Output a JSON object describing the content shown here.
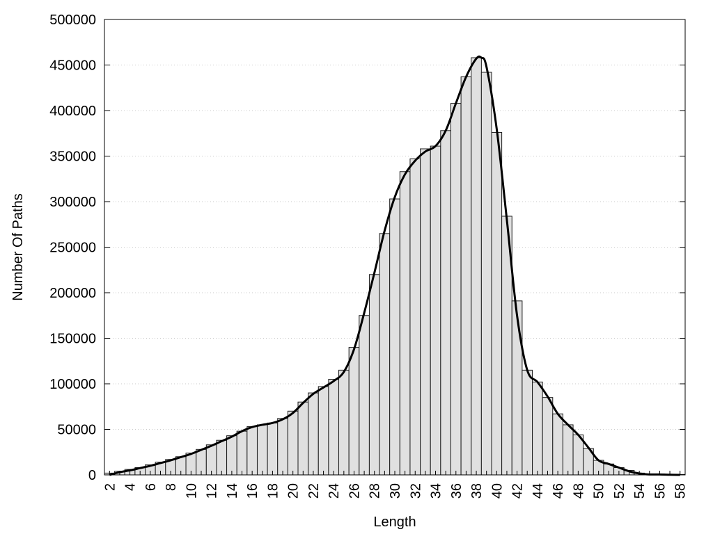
{
  "chart_data": {
    "type": "bar",
    "xlabel": "Length",
    "ylabel": "Number Of Paths",
    "ylim": [
      0,
      500000
    ],
    "xlim": [
      1.5,
      58.5
    ],
    "yticks": [
      0,
      50000,
      100000,
      150000,
      200000,
      250000,
      300000,
      350000,
      400000,
      450000,
      500000
    ],
    "xtick_labels": [
      "2",
      "4",
      "6",
      "8",
      "10",
      "12",
      "14",
      "16",
      "18",
      "20",
      "22",
      "24",
      "26",
      "28",
      "30",
      "32",
      "34",
      "36",
      "38",
      "40",
      "42",
      "44",
      "46",
      "48",
      "50",
      "52",
      "54",
      "56",
      "58"
    ],
    "grid": "horizontal dotted",
    "bar_color": "#e0e0e0",
    "line_color": "#000000",
    "series": [
      {
        "type": "bar",
        "x": [
          2,
          3,
          4,
          5,
          6,
          7,
          8,
          9,
          10,
          11,
          12,
          13,
          14,
          15,
          16,
          17,
          18,
          19,
          20,
          21,
          22,
          23,
          24,
          25,
          26,
          27,
          28,
          29,
          30,
          31,
          32,
          33,
          34,
          35,
          36,
          37,
          38,
          39,
          40,
          41,
          42,
          43,
          44,
          45,
          46,
          47,
          48,
          49,
          50,
          51,
          52,
          53,
          54,
          55,
          56,
          57,
          58
        ],
        "values": [
          2000,
          4000,
          6000,
          8000,
          11000,
          14000,
          17000,
          20000,
          24000,
          28000,
          33000,
          38000,
          43000,
          48000,
          53000,
          55000,
          57000,
          62000,
          70000,
          80000,
          90000,
          97000,
          105000,
          115000,
          140000,
          175000,
          220000,
          265000,
          303000,
          333000,
          347000,
          358000,
          361000,
          378000,
          408000,
          437000,
          458000,
          442000,
          376000,
          284000,
          191000,
          115000,
          102000,
          85000,
          67000,
          55000,
          44000,
          29000,
          16000,
          12000,
          8000,
          5000,
          2000,
          1000,
          1000,
          500,
          500
        ]
      },
      {
        "type": "line",
        "x": [
          2,
          3,
          4,
          5,
          6,
          7,
          8,
          9,
          10,
          11,
          12,
          13,
          14,
          15,
          16,
          17,
          18,
          19,
          20,
          21,
          22,
          23,
          24,
          25,
          26,
          27,
          28,
          29,
          30,
          31,
          32,
          33,
          34,
          35,
          36,
          37,
          38,
          38.5,
          39,
          40,
          41,
          42,
          43,
          44,
          45,
          46,
          47,
          48,
          49,
          50,
          51,
          52,
          53,
          54,
          55,
          56,
          57,
          58
        ],
        "values": [
          0,
          3000,
          5000,
          7500,
          10000,
          13000,
          16000,
          19500,
          23000,
          27500,
          32000,
          37000,
          42000,
          48000,
          52500,
          55000,
          57000,
          61000,
          68000,
          79000,
          89000,
          96000,
          103000,
          113000,
          138000,
          178000,
          222000,
          268000,
          305000,
          330000,
          345000,
          355000,
          361000,
          378000,
          408000,
          437000,
          457000,
          458000,
          448000,
          380000,
          280000,
          175000,
          115000,
          102000,
          86000,
          67000,
          55000,
          44000,
          30000,
          16000,
          12000,
          8000,
          4000,
          1500,
          500,
          500,
          200,
          0
        ]
      }
    ]
  }
}
